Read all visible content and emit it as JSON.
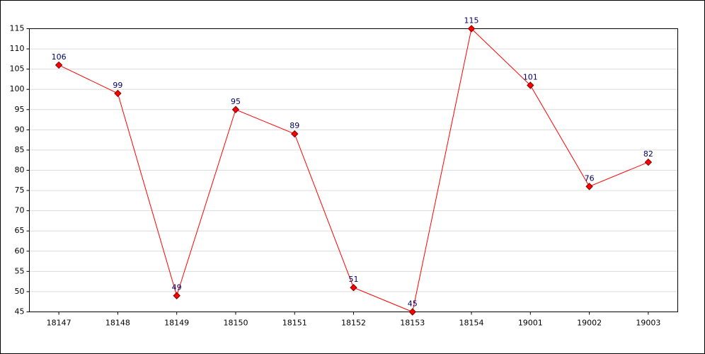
{
  "chart_data": {
    "type": "line",
    "categories": [
      "18147",
      "18148",
      "18149",
      "18150",
      "18151",
      "18152",
      "18153",
      "18154",
      "19001",
      "19002",
      "19003"
    ],
    "values": [
      106,
      99,
      49,
      95,
      89,
      51,
      45,
      115,
      101,
      76,
      82
    ],
    "color": "#ff0000",
    "ylim": [
      45,
      115
    ],
    "yticks": [
      45,
      50,
      55,
      60,
      65,
      70,
      75,
      80,
      85,
      90,
      95,
      100,
      105,
      110,
      115
    ],
    "grid": true
  }
}
